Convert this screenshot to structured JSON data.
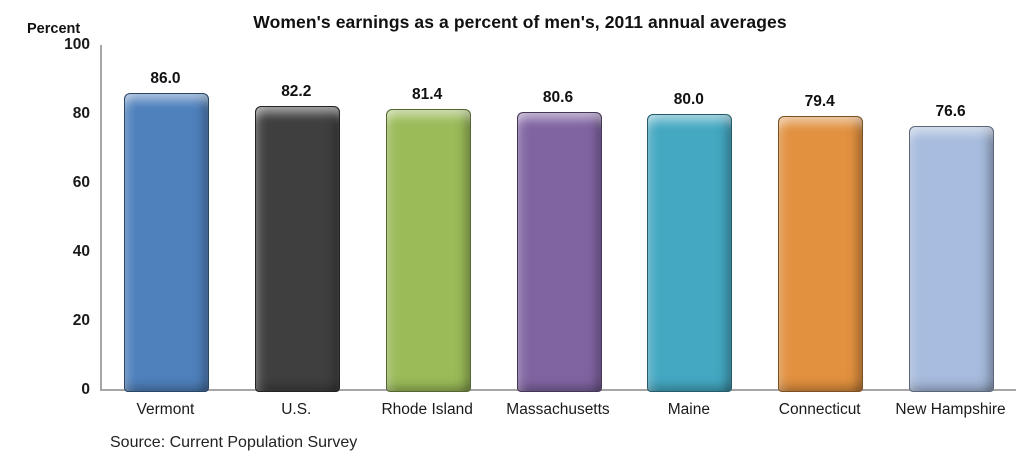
{
  "title": "Women's earnings as a percent of men's, 2011 annual averages",
  "axis_unit_label": "Percent",
  "source": "Source: Current Population Survey",
  "chart_data": {
    "type": "bar",
    "title": "Women's earnings as a percent of men's, 2011 annual averages",
    "categories": [
      "Vermont",
      "U.S.",
      "Rhode Island",
      "Massachusetts",
      "Maine",
      "Connecticut",
      "New Hampshire"
    ],
    "values": [
      86.0,
      82.2,
      81.4,
      80.6,
      80.0,
      79.4,
      76.6
    ],
    "value_labels": [
      "86.0",
      "82.2",
      "81.4",
      "80.6",
      "80.0",
      "79.4",
      "76.6"
    ],
    "bar_colors": [
      "#4F81BD",
      "#3F3F3F",
      "#9BBB59",
      "#8064A2",
      "#44A8C2",
      "#E2913F",
      "#A7BCDE"
    ],
    "xlabel": "",
    "ylabel": "Percent",
    "ylim": [
      0,
      100
    ],
    "yticks": [
      0,
      20,
      40,
      60,
      80,
      100
    ],
    "grid": false,
    "legend": "none",
    "axis_color": "#a6a6a6",
    "source": "Source: Current Population Survey"
  }
}
